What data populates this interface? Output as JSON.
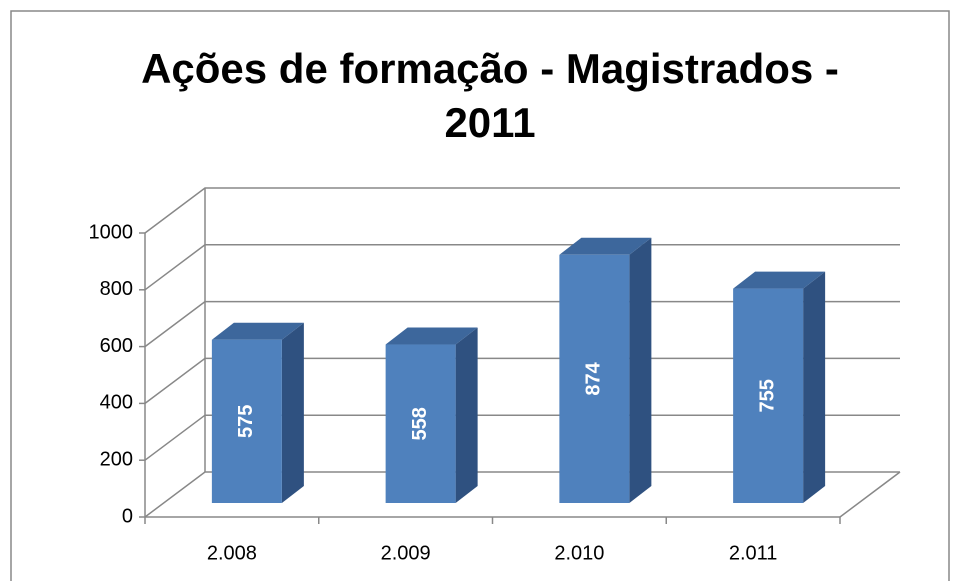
{
  "chart_data": {
    "type": "bar3d",
    "title": "Ações de formação - Magistrados - 2011",
    "categories": [
      "2.008",
      "2.009",
      "2.010",
      "2.011"
    ],
    "values": [
      575,
      558,
      874,
      755
    ],
    "color": "#4f81bd",
    "ylim": [
      0,
      1000
    ],
    "yticks": [
      0,
      200,
      400,
      600,
      800,
      1000
    ],
    "grid": true
  }
}
